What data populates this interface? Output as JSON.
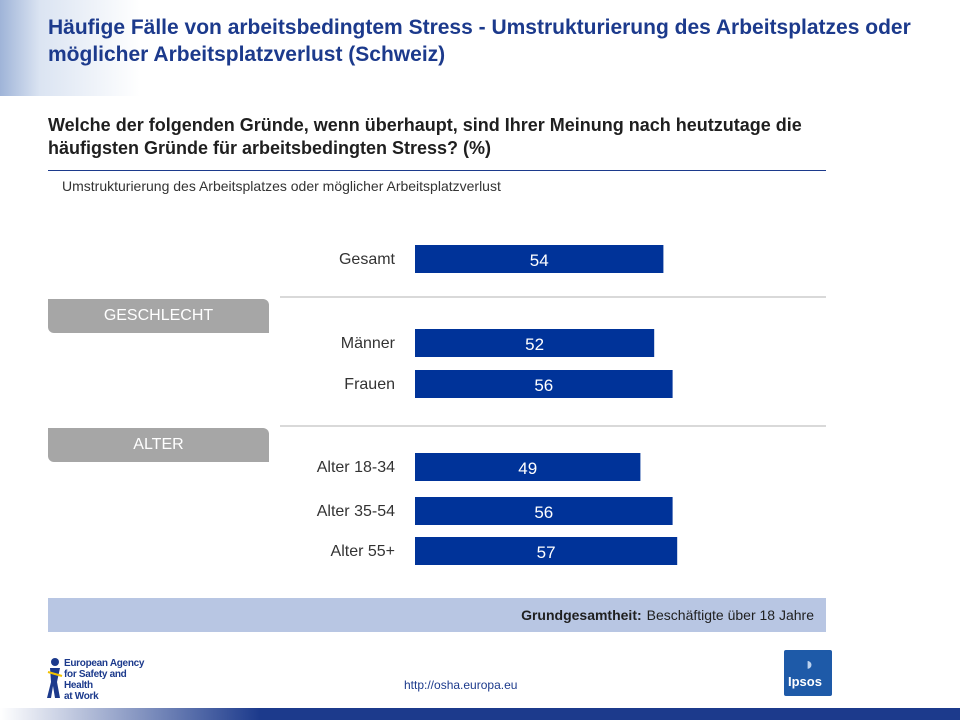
{
  "title": "Häufige Fälle von arbeitsbedingtem Stress - Umstrukturierung des Arbeitsplatzes oder möglicher Arbeitsplatzverlust (Schweiz)",
  "question": "Welche der folgenden Gründe, wenn überhaupt, sind Ihrer Meinung nach heutzutage die häufigsten Gründe für arbeitsbedingten Stress? (%)",
  "subtitle": "Umstrukturierung des Arbeitsplatzes oder möglicher Arbeitsplatzverlust",
  "groups": {
    "gender": "GESCHLECHT",
    "age": "ALTER"
  },
  "chart_data": {
    "type": "bar",
    "orientation": "horizontal",
    "categories": [
      "Gesamt",
      "Männer",
      "Frauen",
      "Alter 18-34",
      "Alter 35-54",
      "Alter 55+"
    ],
    "values": [
      54,
      52,
      56,
      49,
      56,
      57
    ],
    "bar_color": "#003399",
    "xlim": [
      0,
      100
    ]
  },
  "base": {
    "label": "Grundgesamtheit:",
    "value": "Beschäftigte über 18 Jahre"
  },
  "footer": {
    "logo_text": [
      "European Agency",
      "for Safety and Health",
      "at Work"
    ],
    "url": "http://osha.europa.eu",
    "ipsos_text": "Ipsos"
  }
}
